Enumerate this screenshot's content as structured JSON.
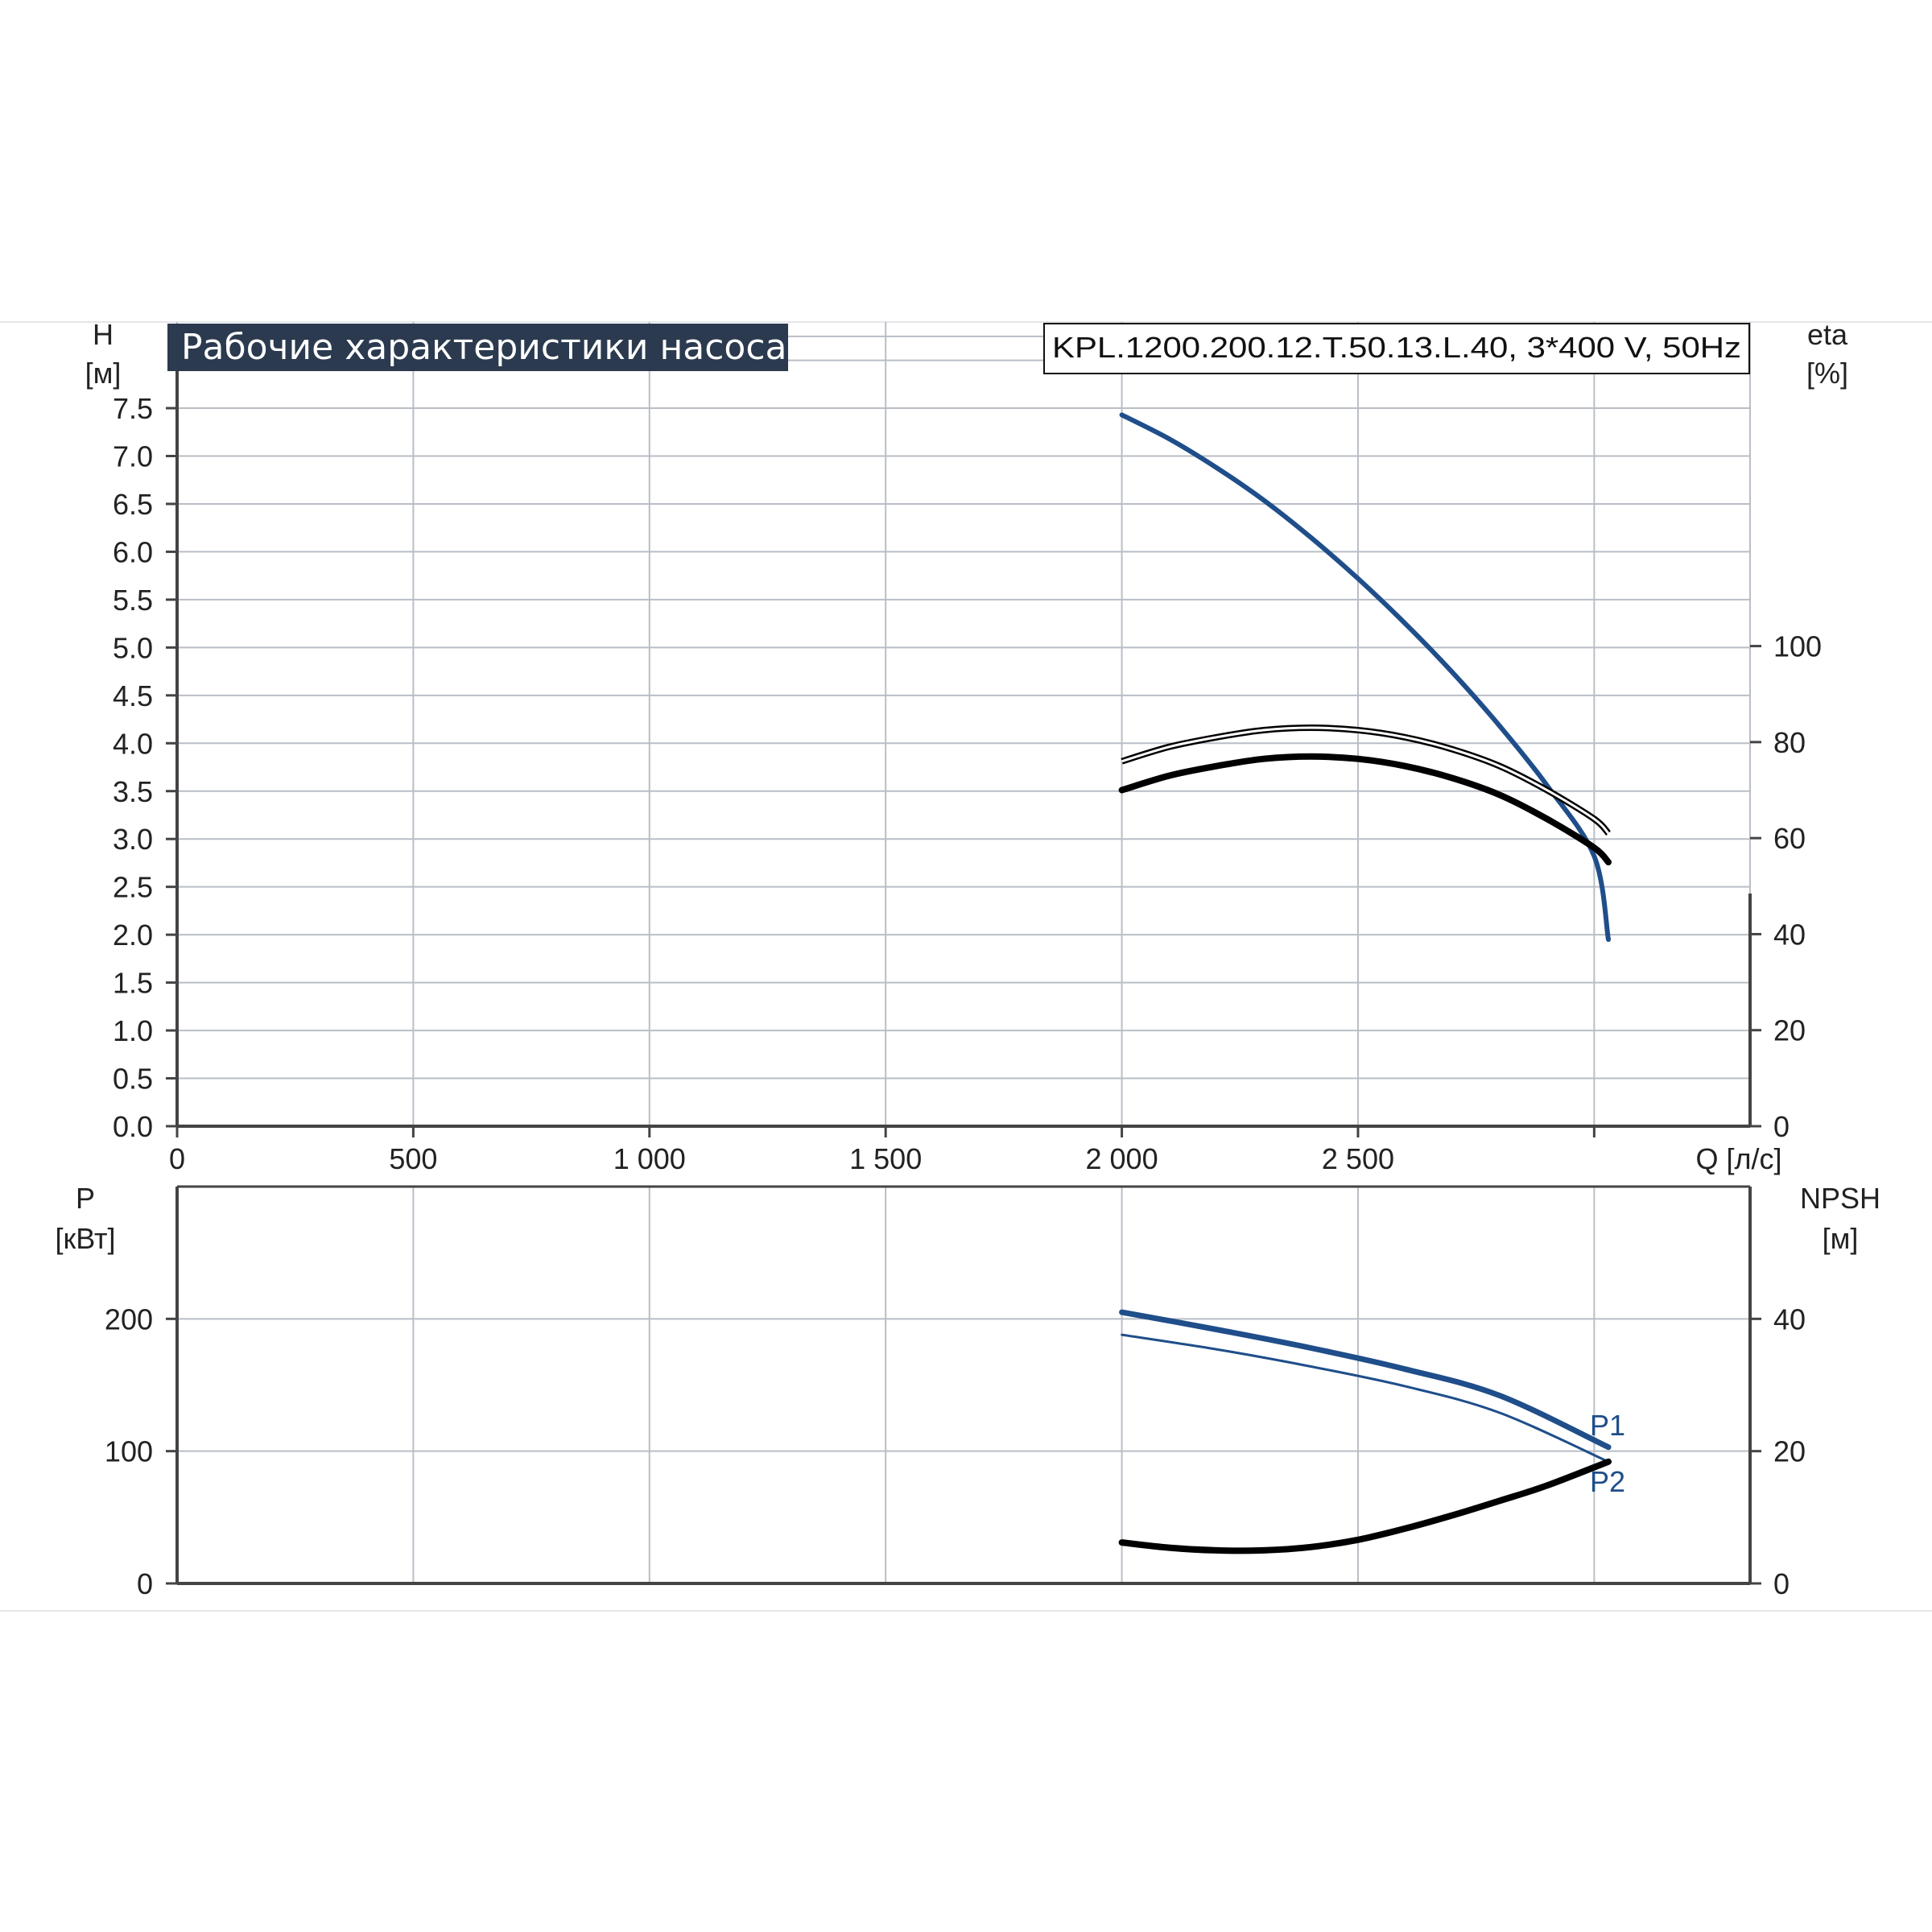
{
  "header": {
    "title": "Рабочие характеристики насоса",
    "model": "KPL.1200.200.12.T.50.13.L.40, 3*400 V, 50Hz"
  },
  "colors": {
    "title_bg": "#2b3a4f",
    "blue": "#1f4e8a",
    "black": "#000000",
    "grid": "#b9bec6"
  },
  "chart_data": [
    {
      "type": "line",
      "panel": "top",
      "x_axis": {
        "label": "Q [л/с]",
        "ticks": [
          0,
          500,
          1000,
          1500,
          2000,
          2500
        ],
        "tick_labels": [
          "0",
          "500",
          "1 000",
          "1 500",
          "2 000",
          "2 500"
        ],
        "lim": [
          0,
          3330
        ]
      },
      "y_axis_left": {
        "label_top": "H",
        "label_unit": "[м]",
        "ticks": [
          0,
          0.5,
          1.0,
          1.5,
          2.0,
          2.5,
          3.0,
          3.5,
          4.0,
          4.5,
          5.0,
          5.5,
          6.0,
          6.5,
          7.0,
          7.5
        ],
        "tick_labels": [
          "0.0",
          "0.5",
          "1.0",
          "1.5",
          "2.0",
          "2.5",
          "3.0",
          "3.5",
          "4.0",
          "4.5",
          "5.0",
          "5.5",
          "6.0",
          "6.5",
          "7.0",
          "7.5"
        ],
        "lim": [
          0,
          8.4
        ]
      },
      "y_axis_right": {
        "label_top": "eta",
        "label_unit": "[%]",
        "ticks": [
          0,
          20,
          40,
          60,
          80,
          100
        ],
        "tick_labels": [
          "0",
          "20",
          "40",
          "60",
          "80",
          "100"
        ],
        "lim": [
          0,
          167.5
        ]
      },
      "grid": true,
      "series": [
        {
          "axis": "left",
          "color": "blue",
          "width": 6,
          "x": [
            2000,
            2100,
            2200,
            2300,
            2400,
            2500,
            2600,
            2700,
            2800,
            2900,
            3000,
            3030
          ],
          "y": [
            7.43,
            7.18,
            6.88,
            6.54,
            6.15,
            5.72,
            5.25,
            4.74,
            4.18,
            3.56,
            2.82,
            1.95
          ]
        },
        {
          "axis": "right",
          "color": "black",
          "width": 4,
          "outline": true,
          "x": [
            2000,
            2100,
            2200,
            2300,
            2400,
            2500,
            2600,
            2700,
            2800,
            2900,
            3000,
            3030
          ],
          "y": [
            76,
            79,
            81,
            82.5,
            83,
            82.5,
            81,
            78.5,
            75,
            70,
            64,
            61
          ]
        },
        {
          "axis": "right",
          "color": "black",
          "width": 8,
          "x": [
            2000,
            2100,
            2200,
            2300,
            2400,
            2500,
            2600,
            2700,
            2800,
            2900,
            3000,
            3030
          ],
          "y": [
            70,
            73,
            75,
            76.5,
            77,
            76.5,
            75,
            72.5,
            69,
            64,
            58,
            55
          ]
        }
      ]
    },
    {
      "type": "line",
      "panel": "bottom",
      "x_axis": {
        "lim": [
          0,
          3330
        ],
        "ticks": [
          0,
          500,
          1000,
          1500,
          2000,
          2500,
          3000
        ]
      },
      "y_axis_left": {
        "label_top": "P",
        "label_unit": "[кВт]",
        "ticks": [
          0,
          100,
          200
        ],
        "tick_labels": [
          "0",
          "100",
          "200"
        ],
        "lim": [
          0,
          300
        ]
      },
      "y_axis_right": {
        "label_top": "NPSH",
        "label_unit": "[м]",
        "ticks": [
          0,
          20,
          40
        ],
        "tick_labels": [
          "0",
          "20",
          "40"
        ],
        "lim": [
          0,
          60
        ]
      },
      "grid": true,
      "series": [
        {
          "name": "P1",
          "axis": "left",
          "color": "blue",
          "width": 7,
          "x": [
            2000,
            2200,
            2400,
            2600,
            2800,
            3030
          ],
          "y": [
            205,
            192,
            178,
            162,
            142,
            103
          ]
        },
        {
          "name": "P2",
          "axis": "left",
          "color": "blue",
          "width": 3,
          "x": [
            2000,
            2200,
            2400,
            2600,
            2800,
            3030
          ],
          "y": [
            188,
            177,
            164,
            149,
            129,
            92
          ]
        },
        {
          "axis": "right",
          "color": "black",
          "width": 8,
          "x": [
            2000,
            2100,
            2200,
            2300,
            2400,
            2500,
            2600,
            2700,
            2800,
            2900,
            3030
          ],
          "y": [
            6.2,
            5.4,
            5.0,
            5.0,
            5.5,
            6.6,
            8.3,
            10.3,
            12.5,
            14.8,
            18.4
          ]
        }
      ]
    }
  ]
}
